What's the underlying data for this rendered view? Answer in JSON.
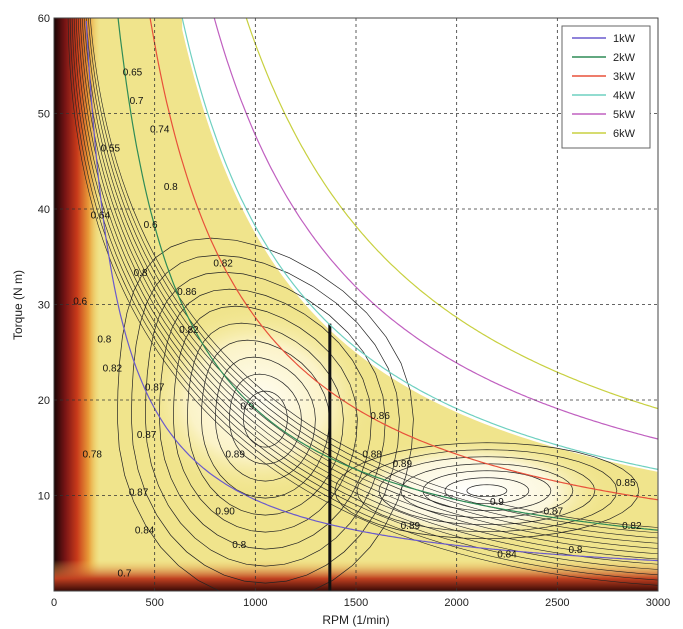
{
  "chart_data": {
    "type": "contour",
    "title": "",
    "xlabel": "RPM (1/min)",
    "ylabel": "Torque (N m)",
    "xlim": [
      0,
      3000
    ],
    "ylim": [
      0,
      60
    ],
    "xticks": [
      0,
      500,
      1000,
      1500,
      2000,
      2500,
      3000
    ],
    "yticks": [
      10,
      20,
      30,
      40,
      50,
      60
    ],
    "grid": true,
    "legend_position": "top-right",
    "power_curves": [
      {
        "name": "1kW",
        "kw": 1,
        "color": "#6a5acd"
      },
      {
        "name": "2kW",
        "kw": 2,
        "color": "#2e8b57"
      },
      {
        "name": "3kW",
        "kw": 3,
        "color": "#e8503a"
      },
      {
        "name": "4kW",
        "kw": 4,
        "color": "#6fd0c0"
      },
      {
        "name": "5kW",
        "kw": 5,
        "color": "#c060c0"
      },
      {
        "name": "6kW",
        "kw": 6,
        "color": "#c8d040"
      }
    ],
    "contour_labels": [
      {
        "text": "0.65",
        "x": 390,
        "y": 54
      },
      {
        "text": "0.7",
        "x": 410,
        "y": 51
      },
      {
        "text": "0.74",
        "x": 525,
        "y": 48
      },
      {
        "text": "0.55",
        "x": 280,
        "y": 46
      },
      {
        "text": "0.8",
        "x": 580,
        "y": 42
      },
      {
        "text": "0.64",
        "x": 230,
        "y": 39
      },
      {
        "text": "0.6",
        "x": 480,
        "y": 38
      },
      {
        "text": "0.82",
        "x": 840,
        "y": 34
      },
      {
        "text": "0.8",
        "x": 430,
        "y": 33
      },
      {
        "text": "0.86",
        "x": 660,
        "y": 31
      },
      {
        "text": "0.6",
        "x": 130,
        "y": 30
      },
      {
        "text": "0.82",
        "x": 670,
        "y": 27
      },
      {
        "text": "0.8",
        "x": 250,
        "y": 26
      },
      {
        "text": "0.82",
        "x": 290,
        "y": 23
      },
      {
        "text": "0.87",
        "x": 500,
        "y": 21
      },
      {
        "text": "0.9",
        "x": 960,
        "y": 19
      },
      {
        "text": "0.86",
        "x": 1620,
        "y": 18
      },
      {
        "text": "0.87",
        "x": 460,
        "y": 16
      },
      {
        "text": "0.89",
        "x": 900,
        "y": 14
      },
      {
        "text": "0.88",
        "x": 1580,
        "y": 14
      },
      {
        "text": "0.89",
        "x": 1730,
        "y": 13
      },
      {
        "text": "0.78",
        "x": 190,
        "y": 14
      },
      {
        "text": "0.87",
        "x": 420,
        "y": 10
      },
      {
        "text": "0.9",
        "x": 2200,
        "y": 9
      },
      {
        "text": "0.87",
        "x": 2480,
        "y": 8
      },
      {
        "text": "0.85",
        "x": 2840,
        "y": 11
      },
      {
        "text": "0.90",
        "x": 850,
        "y": 8
      },
      {
        "text": "0.82",
        "x": 2870,
        "y": 6.5
      },
      {
        "text": "0.84",
        "x": 450,
        "y": 6
      },
      {
        "text": "0.89",
        "x": 1770,
        "y": 6.5
      },
      {
        "text": "0.8",
        "x": 920,
        "y": 4.5
      },
      {
        "text": "0.84",
        "x": 2250,
        "y": 3.5
      },
      {
        "text": "0.8",
        "x": 2590,
        "y": 4
      },
      {
        "text": "0.7",
        "x": 350,
        "y": 1.5
      }
    ]
  }
}
